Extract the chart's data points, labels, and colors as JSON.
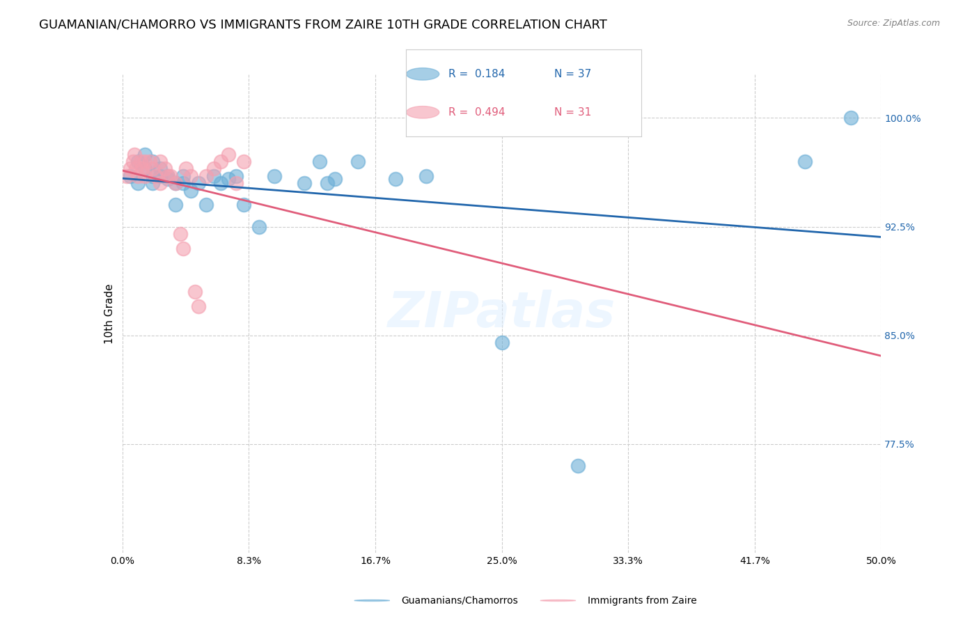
{
  "title": "GUAMANIAN/CHAMORRO VS IMMIGRANTS FROM ZAIRE 10TH GRADE CORRELATION CHART",
  "source": "Source: ZipAtlas.com",
  "ylabel": "10th Grade",
  "yaxis_labels": [
    "100.0%",
    "92.5%",
    "85.0%",
    "77.5%"
  ],
  "yaxis_values": [
    1.0,
    0.925,
    0.85,
    0.775
  ],
  "xlim": [
    0.0,
    0.5
  ],
  "ylim": [
    0.7,
    1.03
  ],
  "blue_color": "#6baed6",
  "pink_color": "#f4a0b0",
  "blue_line_color": "#2166ac",
  "pink_line_color": "#e05c7a",
  "legend_R_blue": "0.184",
  "legend_N_blue": "37",
  "legend_R_pink": "0.494",
  "legend_N_pink": "31",
  "legend_label_blue": "Guamanians/Chamorros",
  "legend_label_pink": "Immigrants from Zaire",
  "watermark": "ZIPatlas",
  "blue_x": [
    0.005,
    0.01,
    0.01,
    0.015,
    0.015,
    0.02,
    0.02,
    0.02,
    0.025,
    0.025,
    0.03,
    0.03,
    0.035,
    0.035,
    0.04,
    0.04,
    0.045,
    0.05,
    0.055,
    0.06,
    0.065,
    0.07,
    0.075,
    0.08,
    0.09,
    0.1,
    0.12,
    0.13,
    0.135,
    0.14,
    0.155,
    0.18,
    0.2,
    0.25,
    0.3,
    0.45,
    0.48
  ],
  "blue_y": [
    0.96,
    0.97,
    0.955,
    0.965,
    0.975,
    0.96,
    0.97,
    0.955,
    0.965,
    0.96,
    0.958,
    0.96,
    0.955,
    0.94,
    0.955,
    0.96,
    0.95,
    0.955,
    0.94,
    0.96,
    0.955,
    0.958,
    0.96,
    0.94,
    0.925,
    0.96,
    0.955,
    0.97,
    0.955,
    0.958,
    0.97,
    0.958,
    0.96,
    0.845,
    0.76,
    0.97,
    1.0
  ],
  "pink_x": [
    0.003,
    0.005,
    0.007,
    0.008,
    0.009,
    0.01,
    0.012,
    0.013,
    0.015,
    0.015,
    0.018,
    0.02,
    0.022,
    0.025,
    0.025,
    0.028,
    0.03,
    0.032,
    0.035,
    0.038,
    0.04,
    0.042,
    0.045,
    0.048,
    0.05,
    0.055,
    0.06,
    0.065,
    0.07,
    0.075,
    0.08
  ],
  "pink_y": [
    0.96,
    0.965,
    0.97,
    0.975,
    0.965,
    0.96,
    0.97,
    0.965,
    0.97,
    0.96,
    0.97,
    0.965,
    0.96,
    0.97,
    0.955,
    0.965,
    0.96,
    0.96,
    0.955,
    0.92,
    0.91,
    0.965,
    0.96,
    0.88,
    0.87,
    0.96,
    0.965,
    0.97,
    0.975,
    0.955,
    0.97
  ],
  "grid_color": "#cccccc",
  "bg_color": "#ffffff",
  "title_fontsize": 13,
  "axis_label_fontsize": 11,
  "tick_fontsize": 10,
  "watermark_fontsize": 52,
  "watermark_color": "#ddeeff",
  "watermark_alpha": 0.5
}
